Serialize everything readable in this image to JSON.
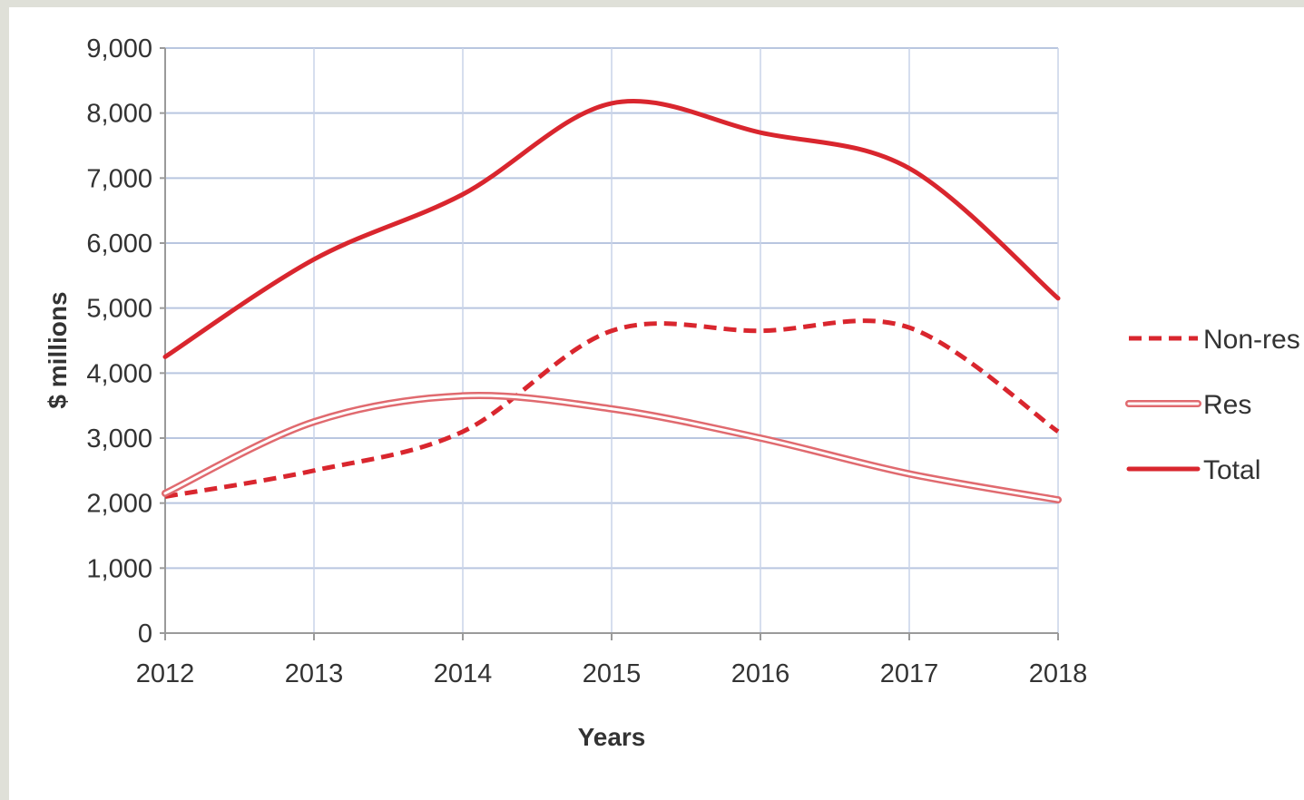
{
  "chart_data": {
    "type": "line",
    "title": "",
    "xlabel": "Years",
    "ylabel": "$ millions",
    "x": [
      "2012",
      "2013",
      "2014",
      "2015",
      "2016",
      "2017",
      "2018"
    ],
    "xlim": [
      2012,
      2018
    ],
    "ylim": [
      0,
      9000
    ],
    "yticks": [
      0,
      1000,
      2000,
      3000,
      4000,
      5000,
      6000,
      7000,
      8000,
      9000
    ],
    "ytick_labels": [
      "0",
      "1,000",
      "2,000",
      "3,000",
      "4,000",
      "5,000",
      "6,000",
      "7,000",
      "8,000",
      "9,000"
    ],
    "grid": true,
    "legend_position": "right",
    "series": [
      {
        "name": "Non-res",
        "style": "dashed",
        "color": "#d9262e",
        "values": [
          2100,
          2500,
          3100,
          4650,
          4650,
          4700,
          3100
        ]
      },
      {
        "name": "Res",
        "style": "double",
        "color": "#e06a6f",
        "values": [
          2150,
          3250,
          3650,
          3450,
          3000,
          2450,
          2050
        ]
      },
      {
        "name": "Total",
        "style": "solid",
        "color": "#d9262e",
        "values": [
          4250,
          5750,
          6750,
          8150,
          7700,
          7150,
          5150
        ]
      }
    ]
  }
}
